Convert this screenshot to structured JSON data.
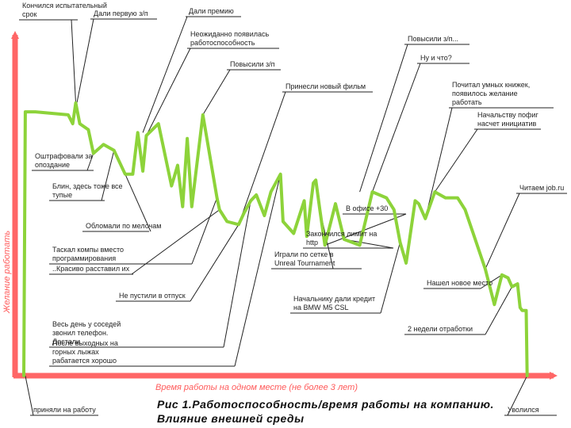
{
  "colors": {
    "axis": "#ff6666",
    "line": "#8dd33a",
    "leader": "#222222",
    "text": "#222222"
  },
  "caption": {
    "line1": "Рис 1.Работоспособность/время работы на компанию.",
    "line2": "Влияние внешней среды"
  },
  "chart_data": {
    "type": "line",
    "title": "",
    "xlabel": "Время работы на одном месте (не более 3 лет)",
    "ylabel": "Желание работать",
    "xlim": [
      0,
      100
    ],
    "ylim": [
      0,
      100
    ],
    "grid": false,
    "legend": "none",
    "series": [
      {
        "x": [
          0,
          0.3,
          2.3,
          8.8,
          9.7,
          10.3,
          11.1,
          12.8,
          13.8,
          15.8,
          17.9,
          20.1,
          21.6,
          22.6,
          23.6,
          24.3,
          26.7,
          29.3,
          30.5,
          31.5,
          32.4,
          33.3,
          35.5,
          38.3,
          38.8,
          40.3,
          42.6,
          43.7,
          45.0,
          46.1,
          47.7,
          49.0,
          50.9,
          51.4,
          53.5,
          55.6,
          56.1,
          57.4,
          57.9,
          58.7,
          59.7,
          61.8,
          63.5,
          66.6,
          69.1,
          71.9,
          73.4,
          74.6,
          75.8,
          77.6,
          78.3,
          79.6,
          81.5,
          83.6,
          86.0,
          87.5,
          89.1,
          91.5,
          93.3,
          94.8,
          96.0,
          96.8,
          97.9,
          98.4,
          98.8,
          99.6,
          99.8
        ],
        "y": [
          0,
          89,
          89,
          88,
          85,
          92,
          85,
          83,
          75,
          78,
          76,
          68,
          68,
          82,
          69,
          81,
          85,
          64,
          71,
          57,
          80,
          57,
          88,
          60,
          56,
          52,
          51,
          55,
          59,
          61,
          54,
          62,
          68,
          52,
          48,
          59,
          47,
          65,
          66,
          56,
          44,
          58,
          46,
          44,
          62,
          60,
          56,
          45,
          38,
          59,
          58,
          53,
          62,
          60,
          60,
          56,
          48,
          36,
          24,
          34,
          33,
          30,
          31,
          23,
          22,
          22,
          0
        ]
      }
    ],
    "annotations": [
      {
        "text": "Кончился испытательный срок",
        "x": 10.3,
        "y": 92
      },
      {
        "text": "Дали первую з/п",
        "x": 9.7,
        "y": 85
      },
      {
        "text": "Дали премию",
        "x": 23.6,
        "y": 82
      },
      {
        "text": "Неожиданно появилась работоспособность",
        "x": 24.3,
        "y": 81
      },
      {
        "text": "Повысили з/п",
        "x": 35.5,
        "y": 88
      },
      {
        "text": "Принесли новый фильм",
        "x": 42.6,
        "y": 51
      },
      {
        "text": "Повысили з/п...",
        "x": 66.6,
        "y": 62
      },
      {
        "text": "Ну и что?",
        "x": 69.1,
        "y": 62
      },
      {
        "text": "Почитал умных книжек, появилось желание работать",
        "x": 79.6,
        "y": 53
      },
      {
        "text": "Начальству пофиг насчет инициатив",
        "x": 81.5,
        "y": 62
      },
      {
        "text": "Читаем job.ru",
        "x": 91.5,
        "y": 36
      },
      {
        "text": "Оштрафовали за опоздание",
        "x": 13.8,
        "y": 75
      },
      {
        "text": "Блин, здесь тоже все тупые",
        "x": 17.9,
        "y": 76
      },
      {
        "text": "Обломали по мелочам",
        "x": 20.1,
        "y": 68
      },
      {
        "text": "Таскал компы вместо программирования",
        "x": 38.3,
        "y": 60
      },
      {
        "text": "..Красиво расставил их",
        "x": 38.8,
        "y": 56
      },
      {
        "text": "Не пустили в отпуск",
        "x": 42.6,
        "y": 51
      },
      {
        "text": "Весь день у соседей звонил телефон. Достали.",
        "x": 45.0,
        "y": 59
      },
      {
        "text": "После выходных на горных лыжах рабатается хорошо",
        "x": 50.9,
        "y": 68
      },
      {
        "text": "В офисе +30",
        "x": 59.7,
        "y": 44
      },
      {
        "text": "Закончился лимит на http",
        "x": 63.5,
        "y": 46
      },
      {
        "text": "Играли по сетке в Unreal Tournament",
        "x": 58.7,
        "y": 56
      },
      {
        "text": "Начальнику дали кредит на BMW M5 CSL",
        "x": 74.6,
        "y": 45
      },
      {
        "text": "Нашел новое место",
        "x": 94.8,
        "y": 34
      },
      {
        "text": "2 недели отработки",
        "x": 96.8,
        "y": 30
      },
      {
        "text": "приняли на работу",
        "x": 0.3,
        "y": 0
      },
      {
        "text": "Уволился",
        "x": 99.8,
        "y": 0
      }
    ]
  }
}
